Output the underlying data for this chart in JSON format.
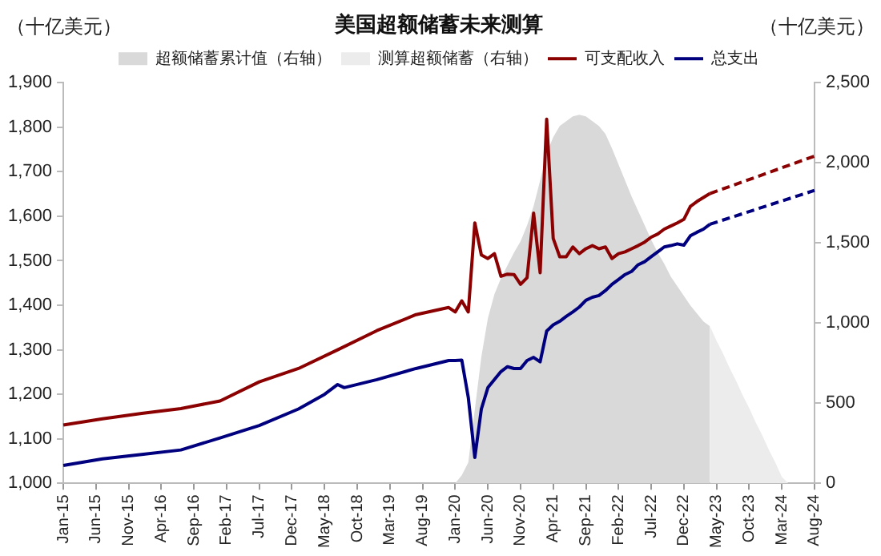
{
  "chart_data": {
    "type": "line",
    "title": "美国超额储蓄未来测算",
    "ylabel": "（十亿美元）",
    "y2label": "（十亿美元）",
    "categories": [
      "Jan-15",
      null,
      null,
      null,
      null,
      "Jun-15",
      null,
      null,
      null,
      null,
      "Nov-15",
      null,
      null,
      null,
      null,
      "Apr-16",
      null,
      null,
      null,
      null,
      "Sep-16",
      null,
      null,
      null,
      null,
      "Feb-17",
      null,
      null,
      null,
      null,
      "Jul-17",
      null,
      null,
      null,
      null,
      "Dec-17",
      null,
      null,
      null,
      null,
      "May-18",
      null,
      null,
      null,
      null,
      "Oct-18",
      null,
      null,
      null,
      null,
      "Mar-19",
      null,
      null,
      null,
      null,
      "Aug-19",
      null,
      null,
      null,
      null,
      "Jan-20",
      null,
      null,
      null,
      null,
      "Jun-20",
      null,
      null,
      null,
      null,
      "Nov-20",
      null,
      null,
      null,
      null,
      "Apr-21",
      null,
      null,
      null,
      null,
      "Sep-21",
      null,
      null,
      null,
      null,
      "Feb-22",
      null,
      null,
      null,
      null,
      "Jul-22",
      null,
      null,
      null,
      null,
      "Dec-22",
      null,
      null,
      null,
      null,
      "May-23",
      null,
      null,
      null,
      null,
      "Oct-23",
      null,
      null,
      null,
      null,
      "Mar-24",
      null,
      null,
      null,
      null,
      "Aug-24"
    ],
    "series": [
      {
        "name": "超额储蓄累计值（右轴）",
        "type": "area",
        "axis": "y2",
        "color": "#d9d9d9",
        "values": [
          null,
          null,
          null,
          null,
          null,
          null,
          null,
          null,
          null,
          null,
          null,
          null,
          null,
          null,
          null,
          null,
          null,
          null,
          null,
          null,
          null,
          null,
          null,
          null,
          null,
          null,
          null,
          null,
          null,
          null,
          null,
          null,
          null,
          null,
          null,
          null,
          null,
          null,
          null,
          null,
          null,
          null,
          null,
          null,
          null,
          null,
          null,
          null,
          null,
          null,
          null,
          null,
          null,
          null,
          null,
          null,
          null,
          null,
          null,
          null,
          0,
          50,
          130,
          460,
          790,
          1030,
          1180,
          1280,
          1360,
          1440,
          1510,
          1610,
          1730,
          1890,
          2060,
          2160,
          2230,
          2260,
          2290,
          2300,
          2290,
          2260,
          2230,
          2180,
          2090,
          1990,
          1890,
          1790,
          1700,
          1610,
          1520,
          1440,
          1370,
          1290,
          1230,
          1170,
          1110,
          1060,
          1010,
          980,
          null,
          null,
          null,
          null,
          null,
          null,
          null,
          null,
          null,
          null,
          null,
          null,
          null,
          null,
          null,
          null
        ]
      },
      {
        "name": "测算超额储蓄（右轴）",
        "type": "area",
        "axis": "y2",
        "color": "#ececec",
        "values": [
          null,
          null,
          null,
          null,
          null,
          null,
          null,
          null,
          null,
          null,
          null,
          null,
          null,
          null,
          null,
          null,
          null,
          null,
          null,
          null,
          null,
          null,
          null,
          null,
          null,
          null,
          null,
          null,
          null,
          null,
          null,
          null,
          null,
          null,
          null,
          null,
          null,
          null,
          null,
          null,
          null,
          null,
          null,
          null,
          null,
          null,
          null,
          null,
          null,
          null,
          null,
          null,
          null,
          null,
          null,
          null,
          null,
          null,
          null,
          null,
          null,
          null,
          null,
          null,
          null,
          null,
          null,
          null,
          null,
          null,
          null,
          null,
          null,
          null,
          null,
          null,
          null,
          null,
          null,
          null,
          null,
          null,
          null,
          null,
          null,
          null,
          null,
          null,
          null,
          null,
          null,
          null,
          null,
          null,
          null,
          null,
          null,
          null,
          null,
          980,
          890,
          810,
          720,
          640,
          550,
          470,
          380,
          300,
          210,
          130,
          40,
          0,
          null,
          null,
          null,
          null
        ]
      },
      {
        "name": "可支配收入",
        "type": "line",
        "color": "#8b0000",
        "values": [
          1131,
          null,
          null,
          null,
          null,
          null,
          1145,
          null,
          null,
          null,
          null,
          null,
          1157,
          null,
          null,
          null,
          null,
          null,
          1168,
          null,
          null,
          null,
          null,
          null,
          1185,
          null,
          null,
          null,
          null,
          null,
          1228,
          null,
          null,
          null,
          null,
          null,
          1258,
          null,
          null,
          null,
          null,
          null,
          1300,
          null,
          null,
          null,
          null,
          null,
          1343,
          null,
          null,
          null,
          null,
          null,
          1379,
          null,
          null,
          null,
          null,
          1395,
          1385,
          1410,
          1385,
          1585,
          1513,
          1505,
          1516,
          1465,
          1470,
          1469,
          1447,
          1462,
          1607,
          1473,
          1818,
          1550,
          1509,
          1509,
          1531,
          1516,
          1527,
          1534,
          1527,
          1531,
          1505,
          1516,
          1520,
          1527,
          1534,
          1542,
          1553,
          1560,
          1571,
          1578,
          1585,
          1593,
          1622,
          1633,
          1642,
          1651,
          null,
          null,
          null,
          null,
          null,
          null,
          null,
          null,
          null,
          null,
          null,
          null,
          null,
          null,
          null,
          null
        ]
      },
      {
        "name": "总支出",
        "type": "line",
        "color": "#00007f",
        "values": [
          1040,
          null,
          null,
          null,
          null,
          null,
          1055,
          null,
          null,
          null,
          null,
          null,
          1065,
          null,
          null,
          null,
          null,
          null,
          1075,
          null,
          null,
          null,
          null,
          null,
          1102,
          null,
          null,
          null,
          null,
          null,
          1130,
          null,
          null,
          null,
          null,
          null,
          1167,
          null,
          null,
          null,
          1200,
          null,
          1222,
          1215,
          null,
          null,
          null,
          null,
          1233,
          null,
          null,
          null,
          null,
          null,
          1258,
          null,
          null,
          null,
          null,
          1276,
          1276,
          1277,
          1193,
          1058,
          1167,
          1215,
          1233,
          1251,
          1262,
          1258,
          1258,
          1276,
          1283,
          1273,
          1342,
          1356,
          1364,
          1375,
          1385,
          1396,
          1411,
          1418,
          1422,
          1433,
          1447,
          1458,
          1469,
          1476,
          1491,
          1498,
          1509,
          1520,
          1531,
          1534,
          1538,
          1535,
          1556,
          1564,
          1571,
          1582,
          null,
          null,
          null,
          null,
          null,
          null,
          null,
          null,
          null,
          null,
          null,
          null,
          null,
          null,
          null,
          null
        ]
      },
      {
        "type": "line",
        "line_style": "dashed",
        "color": "#8b0000",
        "values": [
          null,
          null,
          null,
          null,
          null,
          null,
          null,
          null,
          null,
          null,
          null,
          null,
          null,
          null,
          null,
          null,
          null,
          null,
          null,
          null,
          null,
          null,
          null,
          null,
          null,
          null,
          null,
          null,
          null,
          null,
          null,
          null,
          null,
          null,
          null,
          null,
          null,
          null,
          null,
          null,
          null,
          null,
          null,
          null,
          null,
          null,
          null,
          null,
          null,
          null,
          null,
          null,
          null,
          null,
          null,
          null,
          null,
          null,
          null,
          null,
          null,
          null,
          null,
          null,
          null,
          null,
          null,
          null,
          null,
          null,
          null,
          null,
          null,
          null,
          null,
          null,
          null,
          null,
          null,
          null,
          null,
          null,
          null,
          null,
          null,
          null,
          null,
          null,
          null,
          null,
          null,
          null,
          null,
          null,
          null,
          null,
          null,
          null,
          null,
          1651,
          null,
          null,
          null,
          null,
          null,
          null,
          null,
          null,
          null,
          null,
          null,
          null,
          null,
          null,
          null,
          1735
        ]
      },
      {
        "type": "line",
        "line_style": "dashed",
        "color": "#00007f",
        "values": [
          null,
          null,
          null,
          null,
          null,
          null,
          null,
          null,
          null,
          null,
          null,
          null,
          null,
          null,
          null,
          null,
          null,
          null,
          null,
          null,
          null,
          null,
          null,
          null,
          null,
          null,
          null,
          null,
          null,
          null,
          null,
          null,
          null,
          null,
          null,
          null,
          null,
          null,
          null,
          null,
          null,
          null,
          null,
          null,
          null,
          null,
          null,
          null,
          null,
          null,
          null,
          null,
          null,
          null,
          null,
          null,
          null,
          null,
          null,
          null,
          null,
          null,
          null,
          null,
          null,
          null,
          null,
          null,
          null,
          null,
          null,
          null,
          null,
          null,
          null,
          null,
          null,
          null,
          null,
          null,
          null,
          null,
          null,
          null,
          null,
          null,
          null,
          null,
          null,
          null,
          null,
          null,
          null,
          null,
          null,
          null,
          null,
          null,
          null,
          1582,
          null,
          null,
          null,
          null,
          null,
          null,
          null,
          null,
          null,
          null,
          null,
          null,
          null,
          null,
          null,
          1658
        ]
      }
    ],
    "ylim": [
      1000,
      1900
    ],
    "yticks": [
      {
        "value": 1000,
        "label": "1,000"
      },
      {
        "value": 1100,
        "label": "1,100"
      },
      {
        "value": 1200,
        "label": "1,200"
      },
      {
        "value": 1300,
        "label": "1,300"
      },
      {
        "value": 1400,
        "label": "1,400"
      },
      {
        "value": 1500,
        "label": "1,500"
      },
      {
        "value": 1600,
        "label": "1,600"
      },
      {
        "value": 1700,
        "label": "1,700"
      },
      {
        "value": 1800,
        "label": "1,800"
      },
      {
        "value": 1900,
        "label": "1,900"
      }
    ],
    "y2lim": [
      0,
      2500
    ],
    "y2ticks": [
      0,
      500,
      {
        "value": 1000,
        "label": "1,000"
      },
      {
        "value": 1500,
        "label": "1,500"
      },
      {
        "value": 2000,
        "label": "2,000"
      },
      {
        "value": 2500,
        "label": "2,500"
      }
    ],
    "legend": "top",
    "marker": "none"
  }
}
